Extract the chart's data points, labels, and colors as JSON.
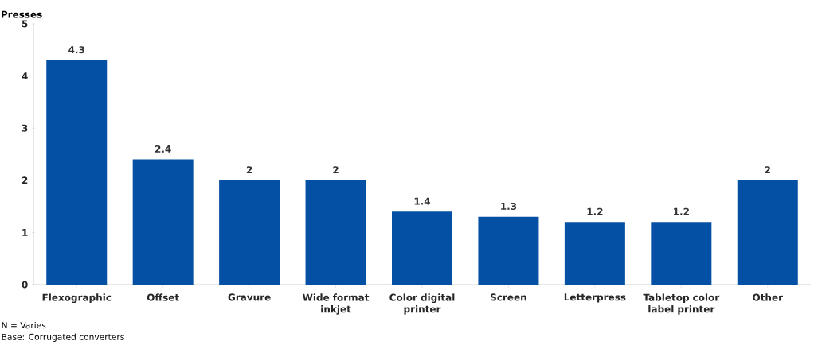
{
  "chart_data": {
    "type": "bar",
    "ylabel": "Presses",
    "categories": [
      "Flexographic",
      "Offset",
      "Gravure",
      "Wide format inkjet",
      "Color digital printer",
      "Screen",
      "Letterpress",
      "Tabletop color label printer",
      "Other"
    ],
    "values": [
      4.3,
      2.4,
      2,
      2,
      1.4,
      1.3,
      1.2,
      1.2,
      2
    ],
    "color": "#0350a4",
    "ylim": [
      0,
      5
    ],
    "yticks": [
      0,
      1,
      2,
      3,
      4,
      5
    ],
    "data_labels": true,
    "annotations": [
      "N =            Varies",
      "Base: Corrugated converters"
    ]
  }
}
